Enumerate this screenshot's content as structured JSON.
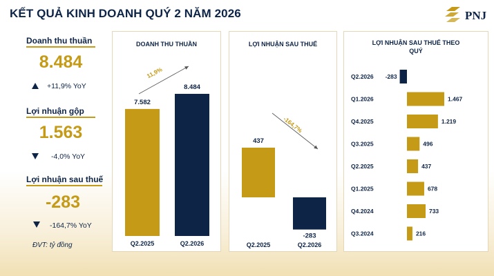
{
  "page": {
    "title": "KẾT QUẢ KINH DOANH QUÝ 2 NĂM 2026",
    "logo_text": "PNJ",
    "unit_note": "ĐVT: tỷ đồng"
  },
  "kpis": [
    {
      "label": "Doanh thu thuần",
      "value": "8.484",
      "change": "+11,9% YoY",
      "direction": "up"
    },
    {
      "label": "Lợi nhuận gộp",
      "value": "1.563",
      "change": "-4,0% YoY",
      "direction": "down"
    },
    {
      "label": "Lợi nhuận sau thuế",
      "value": "-283",
      "change": "-164,7% YoY",
      "direction": "down"
    }
  ],
  "colors": {
    "navy": "#0d2447",
    "gold": "#c49a17"
  },
  "chart_data": [
    {
      "type": "bar",
      "title": "DOANH THU THUẦN",
      "categories": [
        "Q2.2025",
        "Q2.2026"
      ],
      "values": [
        7582,
        8484
      ],
      "value_labels": [
        "7.582",
        "8.484"
      ],
      "colors": [
        "#c49a17",
        "#0d2447"
      ],
      "annotation": "11,9%",
      "ylim": [
        0,
        8484
      ]
    },
    {
      "type": "bar",
      "title": "LỢI NHUẬN SAU THUẾ",
      "categories": [
        "Q2.2025",
        "Q2.2026"
      ],
      "values": [
        437,
        -283
      ],
      "value_labels": [
        "437",
        "-283"
      ],
      "colors": [
        "#c49a17",
        "#0d2447"
      ],
      "annotation": "-164,7%",
      "ylim": [
        -283,
        437
      ]
    },
    {
      "type": "bar",
      "orientation": "horizontal",
      "title": "LỢI NHUẬN SAU THUẾ THEO QUÝ",
      "categories": [
        "Q2.2026",
        "Q1.2026",
        "Q4.2025",
        "Q3.2025",
        "Q2.2025",
        "Q1.2025",
        "Q4.2024",
        "Q3.2024"
      ],
      "values": [
        -283,
        1467,
        1219,
        496,
        437,
        678,
        733,
        216
      ],
      "value_labels": [
        "-283",
        "1.467",
        "1.219",
        "496",
        "437",
        "678",
        "733",
        "216"
      ],
      "colors": [
        "#0d2447",
        "#c49a17",
        "#c49a17",
        "#c49a17",
        "#c49a17",
        "#c49a17",
        "#c49a17",
        "#c49a17"
      ],
      "xlim": [
        -283,
        1467
      ]
    }
  ]
}
